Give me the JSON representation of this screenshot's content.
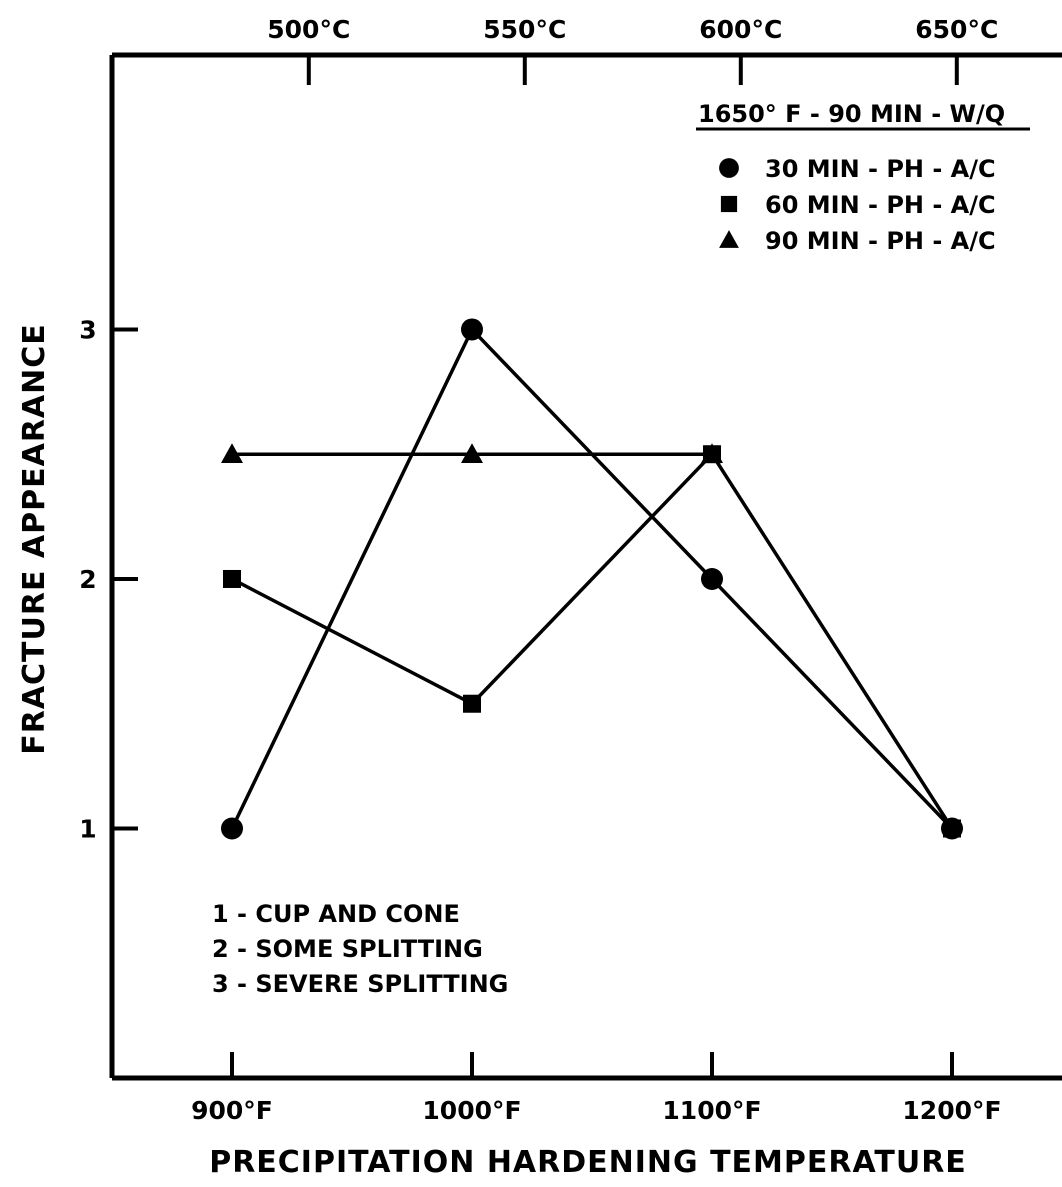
{
  "chart_data": {
    "type": "line",
    "title": "",
    "xlabel": "PRECIPITATION HARDENING TEMPERATURE",
    "ylabel": "FRACTURE APPEARANCE",
    "x": [
      900,
      1000,
      1100,
      1200
    ],
    "x_tick_labels": [
      "900°F",
      "1000°F",
      "1100°F",
      "1200°F"
    ],
    "xlim": [
      850,
      1200
    ],
    "ylim": [
      0,
      4.1
    ],
    "y_ticks": [
      1,
      2,
      3
    ],
    "y_tick_labels": [
      "1",
      "2",
      "3"
    ],
    "top_axis_ticks": [
      {
        "value": 932,
        "label": "500°C"
      },
      {
        "value": 1022,
        "label": "550°C"
      },
      {
        "value": 1112,
        "label": "600°C"
      },
      {
        "value": 1202,
        "label": "650°C"
      }
    ],
    "legend_title": "1650° F - 90 MIN - W/Q",
    "legend_placement": "top-right",
    "series": [
      {
        "name": "30 MIN - PH - A/C",
        "marker": "circle",
        "x": [
          900,
          1000,
          1100,
          1200
        ],
        "values": [
          1,
          3,
          2,
          1
        ]
      },
      {
        "name": "60 MIN - PH - A/C",
        "marker": "square",
        "x": [
          900,
          1000,
          1100,
          1200
        ],
        "values": [
          2,
          1.5,
          2.5,
          1
        ]
      },
      {
        "name": "90 MIN - PH - A/C",
        "marker": "triangle",
        "x": [
          900,
          1000,
          1100
        ],
        "values": [
          2.5,
          2.5,
          2.5
        ]
      }
    ],
    "annotations": [
      "1 - CUP AND CONE",
      "2 - SOME SPLITTING",
      "3 - SEVERE SPLITTING"
    ],
    "grid": false
  }
}
